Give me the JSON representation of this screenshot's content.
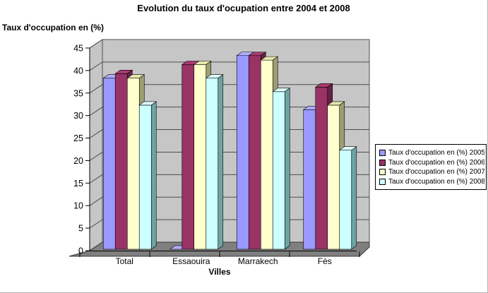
{
  "chart_data": {
    "type": "bar",
    "style": "3d-column",
    "title": "Evolution du taux d'ocupation entre 2004 et 2008",
    "y_axis_title": "Taux d'occupation en (%)",
    "x_axis_title": "Villes",
    "categories": [
      "Total",
      "Essaouira",
      "Marrakech",
      "Fès"
    ],
    "series": [
      {
        "name": "Taux d'occupation en (%) 2005",
        "color": "#9999FF",
        "top_color": "#AEAEFF",
        "side_color": "#6666AA",
        "values": [
          38,
          0,
          43,
          31
        ]
      },
      {
        "name": "Taux d'occupation en (%) 2006",
        "color": "#993366",
        "top_color": "#AA3A72",
        "side_color": "#66224A",
        "values": [
          39,
          41,
          43,
          36
        ]
      },
      {
        "name": "Taux d'occupation en (%) 2007",
        "color": "#FFFFCC",
        "top_color": "#E6E6AE",
        "side_color": "#9E9E75",
        "values": [
          38,
          41,
          42,
          32
        ]
      },
      {
        "name": "Taux d'occupation en (%) 2008",
        "color": "#CCFFFF",
        "top_color": "#DFFFFF",
        "side_color": "#6FA3A3",
        "values": [
          32,
          38,
          35,
          22
        ]
      }
    ],
    "y_axis": {
      "min": 0,
      "max": 45,
      "step": 5,
      "tick_labels": [
        "0",
        "5",
        "10",
        "15",
        "20",
        "25",
        "30",
        "35",
        "40",
        "45"
      ]
    },
    "legend_position": "right",
    "gridlines": true,
    "wall_color": "#C6C6C6",
    "floor_color": "#7F7F7F",
    "gridline_color": "#4D4D4D",
    "outline_color": "#000000"
  }
}
